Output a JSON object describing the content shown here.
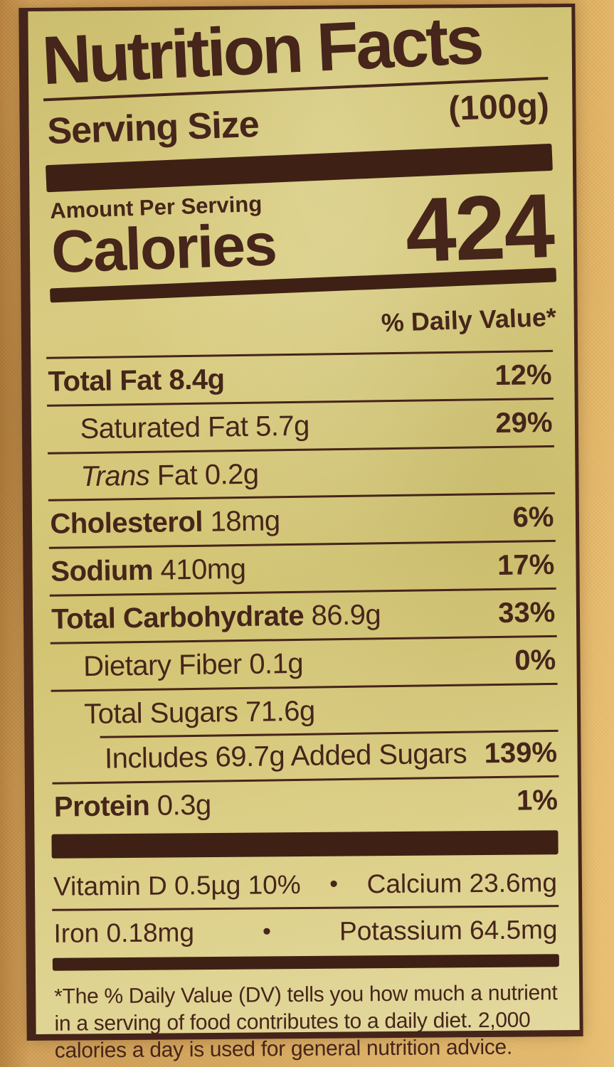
{
  "colors": {
    "ink": "#46251a",
    "bar": "#3e2114",
    "label_background": "#d5c87c",
    "package_background": "#d2a158"
  },
  "label": {
    "title": "Nutrition Facts",
    "serving_size_label": "Serving Size",
    "serving_size_value": "(100g)",
    "amount_per_serving_label": "Amount Per Serving",
    "calories_label": "Calories",
    "calories_value": "424",
    "daily_value_header": "% Daily Value*",
    "bullet": "•",
    "rows": [
      {
        "name": "Total Fat",
        "amount": "8.4g",
        "percent": "12%",
        "bold": true,
        "amount_bold": true,
        "indent": 0
      },
      {
        "name": "Saturated Fat",
        "amount": "5.7g",
        "percent": "29%",
        "bold": false,
        "indent": 1
      },
      {
        "name": "Trans Fat",
        "amount": "0.2g",
        "percent": "",
        "bold": false,
        "indent": 1,
        "italic_word": "Trans"
      },
      {
        "name": "Cholesterol",
        "amount": "18mg",
        "percent": "6%",
        "bold": true,
        "indent": 0
      },
      {
        "name": "Sodium",
        "amount": "410mg",
        "percent": "17%",
        "bold": true,
        "indent": 0
      },
      {
        "name": "Total Carbohydrate",
        "amount": "86.9g",
        "percent": "33%",
        "bold": true,
        "indent": 0
      },
      {
        "name": "Dietary Fiber",
        "amount": "0.1g",
        "percent": "0%",
        "bold": false,
        "indent": 1
      },
      {
        "name": "Total Sugars",
        "amount": "71.6g",
        "percent": "",
        "bold": false,
        "indent": 1
      },
      {
        "name": "Includes 69.7g Added Sugars",
        "amount": "",
        "percent": "139%",
        "bold": false,
        "indent": 2
      },
      {
        "name": "Protein",
        "amount": "0.3g",
        "percent": "1%",
        "bold": true,
        "indent": 0
      }
    ],
    "micronutrients": [
      {
        "left": "Vitamin D 0.5µg 10%",
        "right": "Calcium 23.6mg"
      },
      {
        "left": "Iron 0.18mg",
        "right": "Potassium 64.5mg"
      }
    ],
    "footnote": "*The % Daily Value (DV) tells you how much a nutrient in a serving of food contributes to a daily diet. 2,000 calories a day is used for general nutrition advice."
  }
}
